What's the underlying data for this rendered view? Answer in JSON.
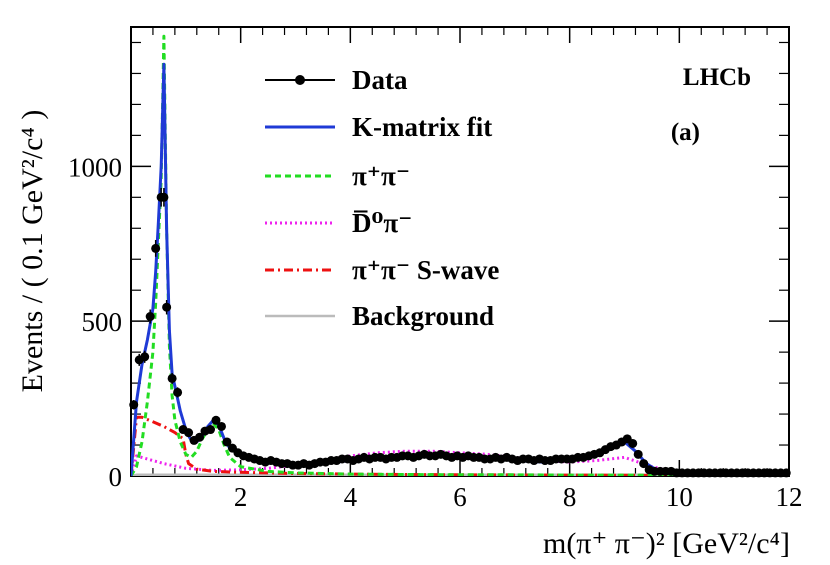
{
  "chart_data": {
    "type": "line",
    "xlabel": "m(π⁺ π⁻)² [GeV²/c⁴]",
    "ylabel": "Events / ( 0.1 GeV²/c⁴ )",
    "xlim": [
      0.0,
      12.0
    ],
    "ylim": [
      0,
      1450
    ],
    "x_ticks": [
      2,
      4,
      6,
      8,
      10,
      12
    ],
    "y_ticks": [
      0,
      500,
      1000
    ],
    "annotations": {
      "experiment": "LHCb",
      "panel": "(a)"
    },
    "legend": [
      {
        "key": "data",
        "label": "Data"
      },
      {
        "key": "kmatrix",
        "label": "K-matrix fit"
      },
      {
        "key": "pipi",
        "label": "π⁺π⁻"
      },
      {
        "key": "dpi",
        "label": "D̅⁰π⁻"
      },
      {
        "key": "swave",
        "label": "π⁺π⁻ S-wave"
      },
      {
        "key": "bkg",
        "label": "Background"
      }
    ],
    "series": {
      "data": {
        "name": "Data",
        "color": "#000000",
        "x": [
          0.05,
          0.15,
          0.25,
          0.35,
          0.45,
          0.55,
          0.6,
          0.65,
          0.75,
          0.85,
          0.95,
          1.05,
          1.15,
          1.25,
          1.35,
          1.45,
          1.55,
          1.65,
          1.75,
          1.85,
          1.95,
          2.05,
          2.15,
          2.25,
          2.35,
          2.45,
          2.55,
          2.65,
          2.75,
          2.85,
          2.95,
          3.05,
          3.15,
          3.25,
          3.35,
          3.45,
          3.55,
          3.65,
          3.75,
          3.85,
          3.95,
          4.05,
          4.15,
          4.25,
          4.35,
          4.45,
          4.55,
          4.65,
          4.75,
          4.85,
          4.95,
          5.05,
          5.15,
          5.25,
          5.35,
          5.45,
          5.55,
          5.65,
          5.75,
          5.85,
          5.95,
          6.05,
          6.15,
          6.25,
          6.35,
          6.45,
          6.55,
          6.65,
          6.75,
          6.85,
          6.95,
          7.05,
          7.15,
          7.25,
          7.35,
          7.45,
          7.55,
          7.65,
          7.75,
          7.85,
          7.95,
          8.05,
          8.15,
          8.25,
          8.35,
          8.45,
          8.55,
          8.65,
          8.75,
          8.85,
          8.95,
          9.05,
          9.15,
          9.25,
          9.35,
          9.45,
          9.55,
          9.65,
          9.75,
          9.85,
          9.95,
          10.05,
          10.15,
          10.25,
          10.35,
          10.45,
          10.55,
          10.65,
          10.75,
          10.85,
          10.95,
          11.05,
          11.15,
          11.25,
          11.35,
          11.45,
          11.55,
          11.65,
          11.75,
          11.85,
          11.95
        ],
        "y": [
          230,
          375,
          385,
          515,
          735,
          900,
          900,
          545,
          315,
          270,
          150,
          140,
          115,
          125,
          145,
          150,
          180,
          160,
          110,
          90,
          75,
          65,
          60,
          55,
          50,
          45,
          50,
          45,
          40,
          40,
          35,
          35,
          40,
          35,
          40,
          45,
          45,
          50,
          50,
          55,
          55,
          50,
          55,
          60,
          55,
          60,
          60,
          55,
          60,
          60,
          65,
          65,
          60,
          65,
          70,
          65,
          65,
          70,
          65,
          60,
          65,
          60,
          65,
          60,
          60,
          55,
          55,
          60,
          55,
          60,
          55,
          50,
          55,
          55,
          50,
          55,
          50,
          50,
          55,
          55,
          55,
          55,
          60,
          60,
          65,
          70,
          75,
          85,
          95,
          100,
          110,
          120,
          105,
          70,
          40,
          20,
          15,
          15,
          15,
          15,
          10,
          10,
          10,
          10,
          10,
          10,
          10,
          10,
          10,
          10,
          10,
          10,
          10,
          10,
          10,
          10,
          10,
          10,
          10,
          10,
          10
        ]
      },
      "kmatrix": {
        "name": "K-matrix fit",
        "color": "#1f3ad6",
        "x": [
          0.0,
          0.1,
          0.2,
          0.3,
          0.4,
          0.45,
          0.5,
          0.55,
          0.6,
          0.65,
          0.7,
          0.75,
          0.8,
          0.9,
          1.0,
          1.05,
          1.1,
          1.2,
          1.3,
          1.4,
          1.5,
          1.6,
          1.7,
          1.8,
          2.0,
          2.2,
          2.5,
          3.0,
          3.5,
          4.0,
          4.5,
          5.0,
          5.5,
          6.0,
          6.5,
          7.0,
          7.5,
          8.0,
          8.3,
          8.6,
          8.8,
          9.0,
          9.2,
          9.4,
          9.6,
          9.8,
          10.0,
          10.5,
          11.0,
          11.5,
          12.0
        ],
        "y": [
          0,
          240,
          360,
          440,
          540,
          660,
          820,
          1000,
          1330,
          800,
          470,
          330,
          290,
          210,
          150,
          130,
          115,
          110,
          130,
          160,
          180,
          165,
          120,
          90,
          70,
          55,
          45,
          35,
          40,
          50,
          60,
          65,
          65,
          60,
          55,
          50,
          45,
          50,
          60,
          80,
          100,
          110,
          80,
          40,
          18,
          12,
          10,
          10,
          10,
          10,
          10
        ]
      },
      "pipi": {
        "name": "π⁺π⁻",
        "color": "#22dd22",
        "x": [
          0.0,
          0.1,
          0.2,
          0.3,
          0.4,
          0.45,
          0.5,
          0.55,
          0.6,
          0.65,
          0.7,
          0.75,
          0.8,
          0.9,
          1.0,
          1.1,
          1.2,
          1.3,
          1.4,
          1.5,
          1.6,
          1.7,
          1.8,
          2.0,
          2.5,
          3.0,
          3.5,
          4.0,
          5.0,
          6.0,
          7.0,
          8.0,
          9.0,
          10.0,
          12.0
        ],
        "y": [
          0,
          30,
          110,
          240,
          400,
          560,
          760,
          960,
          1420,
          800,
          420,
          260,
          180,
          110,
          70,
          60,
          80,
          120,
          150,
          170,
          150,
          100,
          60,
          30,
          15,
          10,
          8,
          6,
          5,
          4,
          4,
          3,
          3,
          2,
          2
        ]
      },
      "dpi": {
        "name": "D̅⁰π⁻",
        "color": "#ee22ee",
        "x": [
          0.0,
          0.1,
          0.3,
          0.6,
          1.0,
          1.5,
          2.0,
          2.5,
          3.0,
          3.5,
          4.0,
          4.5,
          5.0,
          5.5,
          6.0,
          6.5,
          7.0,
          7.5,
          8.0,
          8.5,
          9.0,
          9.5,
          10.0,
          10.5,
          11.0,
          12.0
        ],
        "y": [
          0,
          65,
          55,
          40,
          25,
          18,
          20,
          25,
          35,
          50,
          65,
          75,
          80,
          80,
          75,
          70,
          60,
          50,
          45,
          50,
          60,
          30,
          10,
          5,
          3,
          2
        ]
      },
      "swave": {
        "name": "π⁺π⁻ S-wave",
        "color": "#ee1111",
        "x": [
          0.0,
          0.1,
          0.2,
          0.4,
          0.6,
          0.8,
          0.95,
          1.0,
          1.05,
          1.2,
          1.5,
          2.0,
          2.5,
          3.0,
          4.0,
          5.0,
          6.0,
          8.0,
          10.0,
          12.0
        ],
        "y": [
          0,
          190,
          190,
          175,
          160,
          140,
          120,
          70,
          40,
          22,
          15,
          12,
          10,
          8,
          6,
          5,
          4,
          3,
          2,
          1
        ]
      },
      "bkg": {
        "name": "Background",
        "color": "#bbbbbb",
        "x": [
          0.0,
          0.1,
          12.0
        ],
        "y": [
          0,
          4,
          4
        ]
      }
    }
  }
}
